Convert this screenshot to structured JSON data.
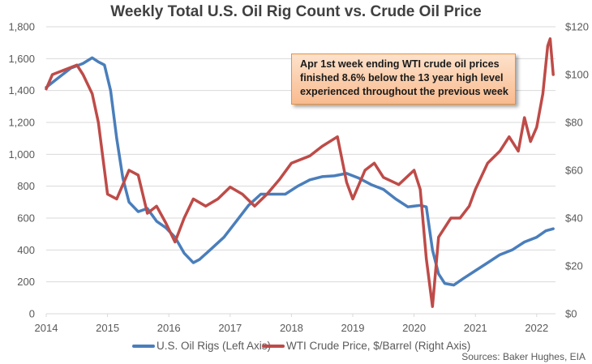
{
  "chart_data": {
    "type": "line",
    "title": "Weekly Total U.S. Oil Rig Count vs. Crude Oil Price",
    "xlabel": "",
    "ylabel": "",
    "xlim": [
      2014,
      2022.3
    ],
    "x_ticks": [
      "2014",
      "2015",
      "2016",
      "2017",
      "2018",
      "2019",
      "2020",
      "2021",
      "2022"
    ],
    "y_left": {
      "ylim": [
        0,
        1800
      ],
      "ticks": [
        "0",
        "200",
        "400",
        "600",
        "800",
        "1,000",
        "1,200",
        "1,400",
        "1,600",
        "1,800"
      ]
    },
    "y_right": {
      "ylim": [
        0,
        120
      ],
      "ticks": [
        "$0",
        "$20",
        "$40",
        "$60",
        "$80",
        "$100",
        "$120"
      ]
    },
    "grid": true,
    "legend_position": "bottom",
    "series": [
      {
        "name": "U.S. Oil Rigs (Left Axis)",
        "axis": "left",
        "color": "#4a7ebb",
        "x": [
          2014.0,
          2014.2,
          2014.4,
          2014.6,
          2014.75,
          2014.85,
          2014.95,
          2015.05,
          2015.15,
          2015.25,
          2015.35,
          2015.5,
          2015.65,
          2015.8,
          2015.95,
          2016.1,
          2016.25,
          2016.4,
          2016.5,
          2016.7,
          2016.9,
          2017.1,
          2017.3,
          2017.5,
          2017.7,
          2017.9,
          2018.1,
          2018.3,
          2018.5,
          2018.7,
          2018.9,
          2019.1,
          2019.3,
          2019.5,
          2019.7,
          2019.9,
          2020.1,
          2020.2,
          2020.3,
          2020.4,
          2020.5,
          2020.65,
          2020.8,
          2021.0,
          2021.2,
          2021.4,
          2021.6,
          2021.8,
          2022.0,
          2022.15,
          2022.27
        ],
        "values": [
          1420,
          1480,
          1540,
          1570,
          1605,
          1580,
          1560,
          1400,
          1100,
          850,
          700,
          640,
          660,
          580,
          540,
          480,
          380,
          320,
          340,
          410,
          480,
          580,
          680,
          750,
          750,
          750,
          800,
          840,
          860,
          865,
          880,
          850,
          810,
          780,
          720,
          670,
          680,
          670,
          400,
          250,
          190,
          180,
          220,
          270,
          320,
          370,
          400,
          450,
          480,
          520,
          533
        ]
      },
      {
        "name": "WTI Crude Price, $/Barrel (Right Axis)",
        "axis": "right",
        "color": "#be4b48",
        "x": [
          2014.0,
          2014.1,
          2014.3,
          2014.5,
          2014.6,
          2014.75,
          2014.85,
          2015.0,
          2015.15,
          2015.35,
          2015.5,
          2015.65,
          2015.8,
          2015.95,
          2016.1,
          2016.25,
          2016.4,
          2016.6,
          2016.8,
          2017.0,
          2017.2,
          2017.4,
          2017.6,
          2017.8,
          2018.0,
          2018.3,
          2018.5,
          2018.75,
          2018.9,
          2019.0,
          2019.2,
          2019.35,
          2019.5,
          2019.75,
          2020.0,
          2020.1,
          2020.2,
          2020.3,
          2020.4,
          2020.6,
          2020.75,
          2020.9,
          2021.0,
          2021.2,
          2021.4,
          2021.55,
          2021.7,
          2021.8,
          2021.9,
          2022.0,
          2022.1,
          2022.18,
          2022.22,
          2022.27
        ],
        "values": [
          94,
          100,
          102,
          104,
          100,
          92,
          80,
          50,
          48,
          60,
          58,
          42,
          45,
          38,
          30,
          40,
          48,
          45,
          48,
          53,
          50,
          45,
          50,
          56,
          63,
          66,
          70,
          74,
          55,
          48,
          60,
          63,
          57,
          54,
          60,
          52,
          23,
          3,
          32,
          40,
          40,
          45,
          52,
          63,
          68,
          74,
          68,
          82,
          72,
          78,
          92,
          112,
          115,
          100
        ]
      }
    ],
    "annotation": {
      "lines": [
        "Apr 1st week ending WTI crude oil prices",
        "finished 8.6% below the 13 year high level",
        "experienced throughout the previous week"
      ],
      "fill_color": "#f9bb8f",
      "border_color": "#e8903f"
    },
    "source": "Sources: Baker Hughes, EIA"
  }
}
